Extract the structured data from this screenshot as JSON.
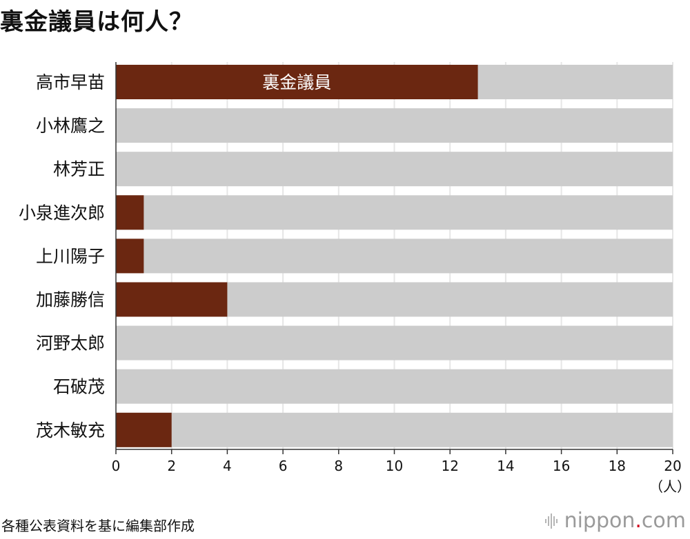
{
  "title": "裏金議員は何人？",
  "source_note": "各種公表資料を基に編集部作成",
  "brand": {
    "name": "nippon",
    "dot": ".",
    "suffix": "com",
    "icon": "nippon-logo-icon"
  },
  "colors": {
    "bar_fill": "#6b2711",
    "bar_background": "#cccccc",
    "grid": "#e6e6e6",
    "axis": "#333333",
    "brand_dot": "#d0021b"
  },
  "chart_data": {
    "type": "bar",
    "orientation": "horizontal",
    "title": "裏金議員は何人？",
    "categories": [
      "高市早苗",
      "小林鷹之",
      "林芳正",
      "小泉進次郎",
      "上川陽子",
      "加藤勝信",
      "河野太郎",
      "石破茂",
      "茂木敏充"
    ],
    "series": [
      {
        "name": "裏金議員",
        "values": [
          13,
          0,
          0,
          1,
          1,
          4,
          0,
          0,
          2
        ]
      }
    ],
    "series_label_on_bar": "裏金議員",
    "series_label_category_index": 0,
    "background_total": 20,
    "xlim": [
      0,
      20
    ],
    "xticks": [
      0,
      2,
      4,
      6,
      8,
      10,
      12,
      14,
      16,
      18,
      20
    ],
    "xtick_labels": [
      "0",
      "2",
      "4",
      "6",
      "8",
      "10",
      "12",
      "14",
      "16",
      "18",
      "20"
    ],
    "x_unit": "（人）",
    "grid": true,
    "legend": "none"
  }
}
